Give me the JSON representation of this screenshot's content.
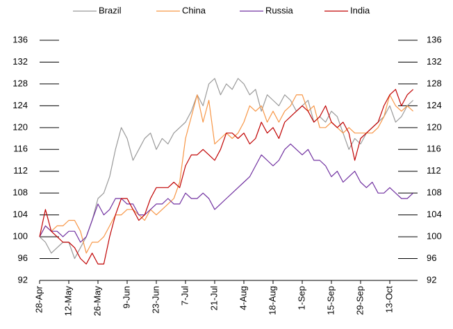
{
  "chart_data": {
    "type": "line",
    "categories": [
      "28-Apr",
      null,
      null,
      null,
      null,
      "12-May",
      null,
      null,
      null,
      null,
      "26-May",
      null,
      null,
      null,
      null,
      "9-Jun",
      null,
      null,
      null,
      null,
      "23-Jun",
      null,
      null,
      null,
      null,
      "7-Jul",
      null,
      null,
      null,
      null,
      "21-Jul",
      null,
      null,
      null,
      null,
      "4-Aug",
      null,
      null,
      null,
      null,
      "18-Aug",
      null,
      null,
      null,
      null,
      "1-Sep",
      null,
      null,
      null,
      null,
      "15-Sep",
      null,
      null,
      null,
      null,
      "29-Sep",
      null,
      null,
      null,
      null,
      "13-Oct",
      null,
      null,
      null,
      null
    ],
    "series": [
      {
        "name": "Brazil",
        "color": "#999999",
        "values": [
          100,
          99,
          97,
          98,
          99,
          99,
          96,
          98,
          100,
          103,
          107,
          108,
          111,
          116,
          120,
          118,
          114,
          116,
          118,
          119,
          116,
          118,
          117,
          119,
          120,
          121,
          123,
          126,
          124,
          128,
          129,
          126,
          128,
          127,
          129,
          128,
          126,
          127,
          123,
          126,
          125,
          124,
          126,
          125,
          123,
          124,
          125,
          121,
          122,
          121,
          123,
          122,
          119,
          116,
          118,
          117,
          119,
          120,
          121,
          122,
          124,
          121,
          122,
          124,
          125
        ]
      },
      {
        "name": "China",
        "color": "#f79646",
        "values": [
          100,
          102,
          101,
          102,
          102,
          103,
          103,
          101,
          97,
          99,
          99,
          100,
          102,
          104,
          104,
          105,
          105,
          104,
          103,
          105,
          104,
          105,
          106,
          107,
          110,
          118,
          122,
          126,
          121,
          125,
          117,
          118,
          119,
          118,
          119,
          121,
          124,
          123,
          124,
          121,
          123,
          121,
          123,
          124,
          126,
          126,
          123,
          124,
          120,
          120,
          121,
          120,
          119,
          120,
          119,
          119,
          119,
          119,
          120,
          122,
          126,
          124,
          123,
          124,
          123
        ]
      },
      {
        "name": "Russia",
        "color": "#7030a0",
        "values": [
          100,
          102,
          101,
          101,
          100,
          101,
          101,
          99,
          100,
          103,
          106,
          104,
          105,
          107,
          107,
          106,
          106,
          104,
          104,
          105,
          106,
          106,
          107,
          106,
          106,
          108,
          107,
          107,
          108,
          107,
          105,
          106,
          107,
          108,
          109,
          110,
          111,
          113,
          115,
          114,
          113,
          114,
          116,
          117,
          116,
          115,
          116,
          114,
          114,
          113,
          111,
          112,
          110,
          111,
          112,
          110,
          109,
          110,
          108,
          108,
          109,
          108,
          107,
          107,
          108
        ]
      },
      {
        "name": "India",
        "color": "#c00000",
        "values": [
          100,
          105,
          101,
          100,
          99,
          99,
          98,
          96,
          95,
          97,
          95,
          95,
          100,
          104,
          107,
          107,
          105,
          103,
          104,
          107,
          109,
          109,
          109,
          110,
          109,
          113,
          115,
          115,
          116,
          115,
          114,
          116,
          119,
          119,
          118,
          119,
          117,
          118,
          121,
          119,
          120,
          118,
          121,
          122,
          123,
          124,
          123,
          121,
          122,
          124,
          121,
          120,
          121,
          119,
          114,
          118,
          119,
          120,
          121,
          124,
          126,
          127,
          124,
          126,
          127
        ]
      }
    ],
    "ylim": [
      92,
      136
    ],
    "yticks": [
      92,
      96,
      100,
      104,
      108,
      112,
      116,
      120,
      124,
      128,
      132,
      136
    ],
    "y2lim": [
      92,
      136
    ],
    "y2ticks": [
      92,
      96,
      100,
      104,
      108,
      112,
      116,
      120,
      124,
      128,
      132,
      136
    ],
    "legend": "top"
  }
}
